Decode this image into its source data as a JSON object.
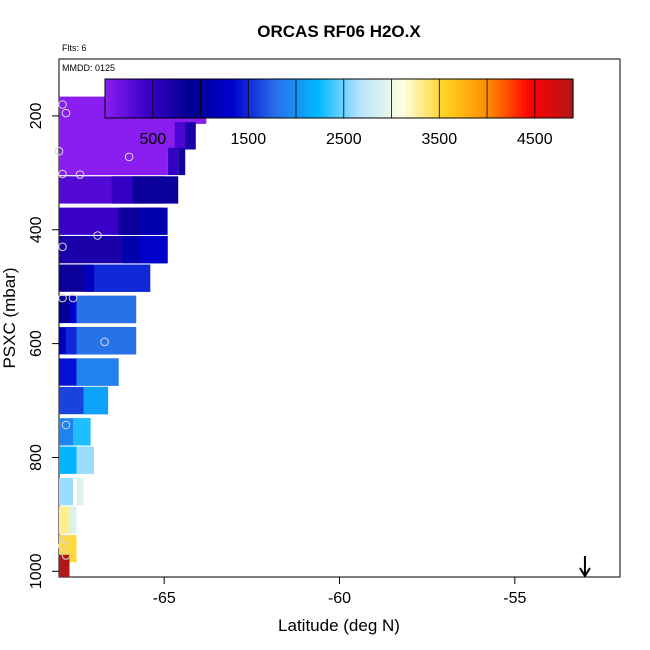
{
  "chart_data": {
    "type": "heatmap",
    "title": "ORCAS RF06 H2O.X",
    "flights_note": "Flts: 6",
    "date_note": "MMDD: 0125",
    "xlabel": "Latitude (deg N)",
    "ylabel": "PSXC (mbar)",
    "xlim": [
      -68.0,
      -52.0
    ],
    "ylim": [
      1010,
      100
    ],
    "x_ticks": [
      -65,
      -60,
      -55
    ],
    "x_tick_labels": [
      "-65",
      "-60",
      "-55"
    ],
    "y_ticks": [
      200,
      400,
      600,
      800,
      1000
    ],
    "y_tick_labels": [
      "200",
      "400",
      "600",
      "800",
      "1000"
    ],
    "colorbar": {
      "min": 0,
      "max": 4900,
      "tick_values": [
        500,
        1500,
        2500,
        3500,
        4500
      ],
      "tick_labels": [
        "500",
        "1500",
        "2500",
        "3500",
        "4500"
      ],
      "divisions": [
        1000,
        2000,
        3000,
        4000
      ],
      "colors": [
        "#8a1ef0",
        "#3a00c8",
        "#000090",
        "#0000d0",
        "#2a6fe8",
        "#00b8ff",
        "#b8e4ff",
        "#ffffe0",
        "#ffd21e",
        "#ff8c00",
        "#ff0000",
        "#b01818"
      ]
    },
    "cells": [
      {
        "p": 190,
        "x0": -68.0,
        "x1": -63.8,
        "v": 0
      },
      {
        "p": 235,
        "x0": -68.0,
        "x1": -64.1,
        "v": 0
      },
      {
        "p": 235,
        "x0": -64.7,
        "x1": -64.4,
        "v": 350
      },
      {
        "p": 235,
        "x0": -64.4,
        "x1": -64.1,
        "v": 700
      },
      {
        "p": 280,
        "x0": -68.0,
        "x1": -64.9,
        "v": 0
      },
      {
        "p": 280,
        "x0": -64.9,
        "x1": -64.6,
        "v": 500
      },
      {
        "p": 280,
        "x0": -64.6,
        "x1": -64.4,
        "v": 750
      },
      {
        "p": 330,
        "x0": -68.0,
        "x1": -65.0,
        "v": 300
      },
      {
        "p": 330,
        "x0": -66.5,
        "x1": -65.9,
        "v": 500
      },
      {
        "p": 330,
        "x0": -65.9,
        "x1": -64.6,
        "v": 800
      },
      {
        "p": 385,
        "x0": -68.0,
        "x1": -65.1,
        "v": 450
      },
      {
        "p": 385,
        "x0": -66.3,
        "x1": -65.7,
        "v": 800
      },
      {
        "p": 385,
        "x0": -65.7,
        "x1": -64.9,
        "v": 1100
      },
      {
        "p": 435,
        "x0": -68.0,
        "x1": -64.9,
        "v": 700
      },
      {
        "p": 435,
        "x0": -66.2,
        "x1": -65.7,
        "v": 1100
      },
      {
        "p": 435,
        "x0": -65.7,
        "x1": -64.9,
        "v": 1300
      },
      {
        "p": 485,
        "x0": -68.0,
        "x1": -65.4,
        "v": 800
      },
      {
        "p": 485,
        "x0": -67.3,
        "x1": -67.0,
        "v": 1200
      },
      {
        "p": 485,
        "x0": -67.0,
        "x1": -65.4,
        "v": 1500
      },
      {
        "p": 540,
        "x0": -68.0,
        "x1": -65.8,
        "v": 850
      },
      {
        "p": 540,
        "x0": -67.7,
        "x1": -67.5,
        "v": 1300
      },
      {
        "p": 540,
        "x0": -67.5,
        "x1": -65.8,
        "v": 1800
      },
      {
        "p": 595,
        "x0": -68.0,
        "x1": -65.8,
        "v": 1200
      },
      {
        "p": 595,
        "x0": -67.8,
        "x1": -67.5,
        "v": 1500
      },
      {
        "p": 595,
        "x0": -67.5,
        "x1": -65.8,
        "v": 1800
      },
      {
        "p": 650,
        "x0": -68.0,
        "x1": -66.3,
        "v": 1400
      },
      {
        "p": 650,
        "x0": -67.5,
        "x1": -66.3,
        "v": 1900
      },
      {
        "p": 700,
        "x0": -68.0,
        "x1": -66.6,
        "v": 1600
      },
      {
        "p": 700,
        "x0": -67.3,
        "x1": -66.6,
        "v": 2100
      },
      {
        "p": 755,
        "x0": -68.0,
        "x1": -67.1,
        "v": 1900
      },
      {
        "p": 755,
        "x0": -67.6,
        "x1": -67.1,
        "v": 2300
      },
      {
        "p": 805,
        "x0": -68.0,
        "x1": -67.5,
        "v": 2200
      },
      {
        "p": 805,
        "x0": -67.5,
        "x1": -67.0,
        "v": 2600
      },
      {
        "p": 860,
        "x0": -68.0,
        "x1": -67.6,
        "v": 2600
      },
      {
        "p": 860,
        "x0": -67.5,
        "x1": -67.3,
        "v": 2900
      },
      {
        "p": 910,
        "x0": -68.0,
        "x1": -67.6,
        "v": 3300
      },
      {
        "p": 910,
        "x0": -67.7,
        "x1": -67.5,
        "v": 2900
      },
      {
        "p": 960,
        "x0": -68.0,
        "x1": -67.5,
        "v": 3500
      },
      {
        "p": 995,
        "x0": -68.0,
        "x1": -67.7,
        "v": 4900
      }
    ],
    "points": [
      {
        "lat": -67.9,
        "p": 180
      },
      {
        "lat": -67.8,
        "p": 195
      },
      {
        "lat": -65.2,
        "p": 190
      },
      {
        "lat": -64.5,
        "p": 178
      },
      {
        "lat": -64.4,
        "p": 177
      },
      {
        "lat": -63.9,
        "p": 178
      },
      {
        "lat": -63.8,
        "p": 178
      },
      {
        "lat": -68.0,
        "p": 262
      },
      {
        "lat": -66.0,
        "p": 272
      },
      {
        "lat": -67.9,
        "p": 302
      },
      {
        "lat": -67.4,
        "p": 303
      },
      {
        "lat": -66.9,
        "p": 410
      },
      {
        "lat": -67.9,
        "p": 430
      },
      {
        "lat": -67.9,
        "p": 520
      },
      {
        "lat": -67.6,
        "p": 520
      },
      {
        "lat": -66.7,
        "p": 597
      },
      {
        "lat": -67.8,
        "p": 743
      },
      {
        "lat": -67.8,
        "p": 943
      },
      {
        "lat": -67.9,
        "p": 955
      },
      {
        "lat": -67.8,
        "p": 972
      }
    ],
    "arrow_lat": -53.0
  }
}
